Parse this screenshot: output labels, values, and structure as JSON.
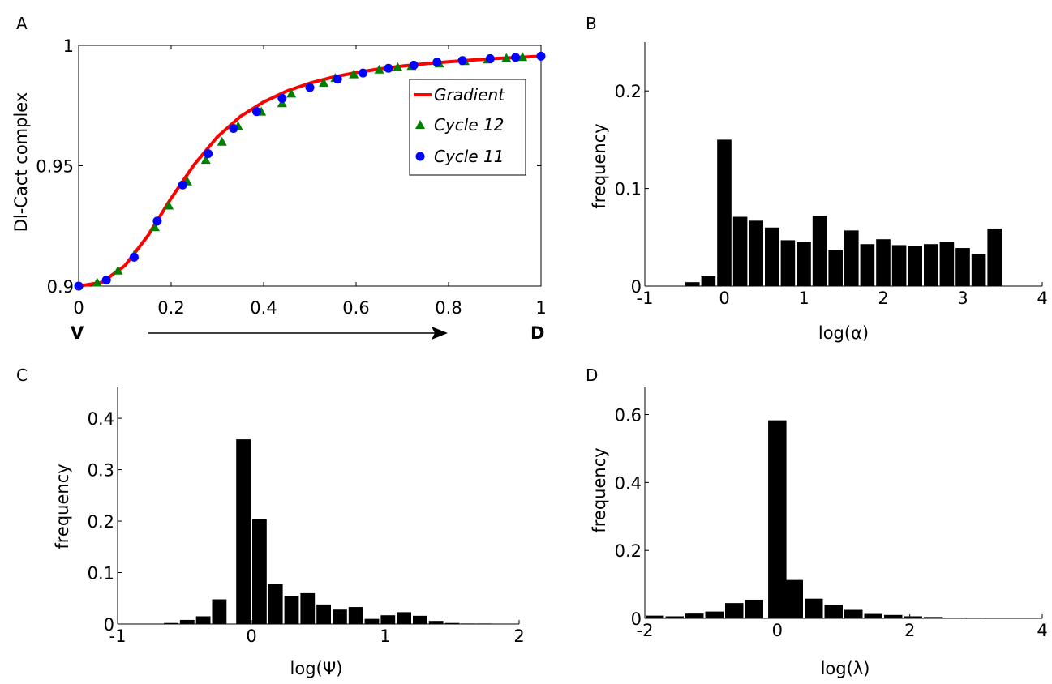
{
  "panels": [
    {
      "letter": "A",
      "chart_data": {
        "type": "line",
        "ylabel": "Dl-Cact complex",
        "xlim": [
          0,
          1
        ],
        "ylim": [
          0.9,
          1
        ],
        "xticks": [
          "0",
          "0.2",
          "0.4",
          "0.6",
          "0.8",
          "1"
        ],
        "yticks": [
          "0.9",
          "0.95",
          "1"
        ],
        "axis_ends": {
          "left": "V",
          "right": "D"
        },
        "legend_position": "right",
        "grid": false,
        "colors": {
          "Gradient": "#ff0000",
          "Cycle 12": "#008000",
          "Cycle 11": "#0000ff"
        },
        "series": [
          {
            "name": "Gradient",
            "x": [
              0,
              0.05,
              0.1,
              0.15,
              0.2,
              0.25,
              0.3,
              0.35,
              0.4,
              0.45,
              0.5,
              0.55,
              0.6,
              0.65,
              0.7,
              0.75,
              0.8,
              0.85,
              0.9,
              0.95,
              1.0
            ],
            "y": [
              0.9,
              0.9015,
              0.9085,
              0.921,
              0.9365,
              0.9505,
              0.962,
              0.9705,
              0.9765,
              0.981,
              0.9843,
              0.9868,
              0.9887,
              0.9902,
              0.9914,
              0.9924,
              0.9932,
              0.9939,
              0.9945,
              0.995,
              0.9955
            ]
          },
          {
            "name": "Cycle 12",
            "x": [
              0.04,
              0.085,
              0.12,
              0.165,
              0.195,
              0.235,
              0.275,
              0.31,
              0.345,
              0.395,
              0.44,
              0.46,
              0.53,
              0.555,
              0.595,
              0.65,
              0.69,
              0.72,
              0.78,
              0.835,
              0.885,
              0.925,
              0.96
            ],
            "y": [
              0.9015,
              0.9065,
              0.913,
              0.9245,
              0.9335,
              0.9435,
              0.9525,
              0.96,
              0.9665,
              0.9725,
              0.976,
              0.98,
              0.9845,
              0.9865,
              0.988,
              0.99,
              0.991,
              0.9915,
              0.9925,
              0.9935,
              0.9942,
              0.9948,
              0.9952
            ]
          },
          {
            "name": "Cycle 11",
            "x": [
              0,
              0.06,
              0.12,
              0.17,
              0.225,
              0.28,
              0.335,
              0.385,
              0.44,
              0.5,
              0.56,
              0.615,
              0.67,
              0.725,
              0.775,
              0.83,
              0.89,
              0.945,
              1.0
            ],
            "y": [
              0.9,
              0.9025,
              0.912,
              0.927,
              0.942,
              0.955,
              0.9655,
              0.9725,
              0.978,
              0.9825,
              0.986,
              0.9885,
              0.9905,
              0.9918,
              0.993,
              0.9937,
              0.9945,
              0.995,
              0.9955
            ]
          }
        ]
      }
    },
    {
      "letter": "B",
      "chart_data": {
        "type": "bar",
        "xlabel": "log(α)",
        "ylabel": "frequency",
        "xlim": [
          -1,
          4
        ],
        "ylim": [
          0,
          0.25
        ],
        "xticks": [
          -1,
          0,
          1,
          2,
          3,
          4
        ],
        "yticks": [
          0,
          0.1,
          0.2
        ],
        "bin_width": 0.2,
        "bin_centers": [
          -0.4,
          -0.2,
          0.0,
          0.2,
          0.4,
          0.6,
          0.8,
          1.0,
          1.2,
          1.4,
          1.6,
          1.8,
          2.0,
          2.2,
          2.4,
          2.6,
          2.8,
          3.0,
          3.2,
          3.4,
          3.6,
          3.8
        ],
        "values": [
          0.004,
          0.01,
          0.15,
          0.071,
          0.067,
          0.06,
          0.047,
          0.045,
          0.072,
          0.037,
          0.057,
          0.043,
          0.048,
          0.042,
          0.041,
          0.043,
          0.045,
          0.039,
          0.033,
          0.059,
          0,
          0
        ]
      }
    },
    {
      "letter": "C",
      "chart_data": {
        "type": "bar",
        "xlabel": "log(Ψ)",
        "ylabel": "frequency",
        "xlim": [
          -1,
          2
        ],
        "ylim": [
          0,
          0.46
        ],
        "xticks": [
          -1,
          0,
          1,
          2
        ],
        "yticks": [
          0,
          0.1,
          0.2,
          0.3,
          0.4
        ],
        "bin_width": 0.12,
        "bin_centers": [
          -0.6,
          -0.48,
          -0.36,
          -0.24,
          -0.06,
          0.06,
          0.18,
          0.3,
          0.42,
          0.54,
          0.66,
          0.78,
          0.9,
          1.02,
          1.14,
          1.26,
          1.38,
          1.5,
          1.62,
          1.74,
          1.86
        ],
        "values": [
          0.002,
          0.008,
          0.015,
          0.048,
          0.359,
          0.204,
          0.078,
          0.055,
          0.06,
          0.038,
          0.028,
          0.033,
          0.01,
          0.017,
          0.023,
          0.016,
          0.006,
          0.002,
          0.001,
          0.001,
          0
        ]
      }
    },
    {
      "letter": "D",
      "chart_data": {
        "type": "bar",
        "xlabel": "log(λ)",
        "ylabel": "frequency",
        "xlim": [
          -2,
          4
        ],
        "ylim": [
          0,
          0.68
        ],
        "xticks": [
          -2,
          0,
          2,
          4
        ],
        "yticks": [
          0,
          0.2,
          0.4,
          0.6
        ],
        "bin_width": 0.3,
        "bin_centers": [
          -1.85,
          -1.55,
          -1.25,
          -0.95,
          -0.65,
          -0.35,
          0.0,
          0.25,
          0.55,
          0.85,
          1.15,
          1.45,
          1.75,
          2.05,
          2.35,
          2.65,
          2.95,
          3.25,
          3.55,
          3.85
        ],
        "values": [
          0.008,
          0.006,
          0.014,
          0.02,
          0.045,
          0.055,
          0.583,
          0.113,
          0.058,
          0.04,
          0.025,
          0.013,
          0.01,
          0.006,
          0.004,
          0.002,
          0.002,
          0.001,
          0.001,
          0.001
        ]
      }
    }
  ]
}
